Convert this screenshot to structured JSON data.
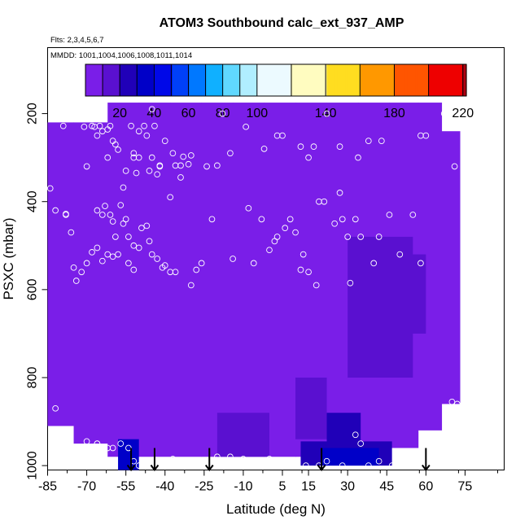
{
  "chart_data": {
    "type": "heatmap",
    "title": "ATOM3 Southbound calc_ext_937_AMP",
    "subtitle_flights": "Flts: 2,3,4,5,6,7",
    "subtitle_dates": "MMDD: 1001,1004,1006,1008,1011,1014",
    "xlabel": "Latitude (deg N)",
    "ylabel": "PSXC (mbar)",
    "xlim": [
      -85,
      90
    ],
    "ylim": [
      1010,
      50
    ],
    "x_ticks": [
      -85,
      -70,
      -55,
      -40,
      -25,
      -10,
      5,
      15,
      30,
      45,
      60,
      75
    ],
    "x_tick_labels": [
      "-85",
      "-70",
      "-55",
      "-40",
      "-25",
      "-10",
      "5",
      "15",
      "30",
      "45",
      "60",
      "75"
    ],
    "y_ticks": [
      200,
      400,
      600,
      800,
      1000
    ],
    "y_tick_labels": [
      "200",
      "400",
      "600",
      "800",
      "1000"
    ],
    "colorbar": {
      "range": [
        0,
        222
      ],
      "tick_values": [
        20,
        40,
        60,
        80,
        100,
        140,
        180,
        220
      ],
      "tick_labels": [
        "20",
        "40",
        "60",
        "80",
        "100",
        "140",
        "180",
        "220"
      ],
      "boundaries": [
        10,
        20,
        30,
        40,
        50,
        60,
        70,
        80,
        90,
        100,
        120,
        140,
        160,
        180,
        200,
        220
      ],
      "colors": [
        "#7a1ee8",
        "#5a10d0",
        "#2000b8",
        "#0000c8",
        "#0008e8",
        "#0040f8",
        "#0078ff",
        "#10b0ff",
        "#60d8ff",
        "#b0eeff",
        "#ecfaff",
        "#fffcc0",
        "#ffdd20",
        "#ff9800",
        "#ff5500",
        "#ee0000",
        "#b00010"
      ]
    },
    "profiles": [
      {
        "lat": -82,
        "pmin": 220,
        "pmax": 910
      },
      {
        "lat": -68,
        "pmin": 220,
        "pmax": 950
      },
      {
        "lat": -56,
        "pmin": 175,
        "pmax": 980
      },
      {
        "lat": -44,
        "pmin": 175,
        "pmax": 980
      },
      {
        "lat": -32,
        "pmin": 175,
        "pmax": 980
      },
      {
        "lat": -20,
        "pmin": 175,
        "pmax": 980
      },
      {
        "lat": -8,
        "pmin": 175,
        "pmax": 980
      },
      {
        "lat": 4,
        "pmin": 175,
        "pmax": 980
      },
      {
        "lat": 16,
        "pmin": 175,
        "pmax": 980
      },
      {
        "lat": 28,
        "pmin": 175,
        "pmax": 980
      },
      {
        "lat": 40,
        "pmin": 175,
        "pmax": 980
      },
      {
        "lat": 52,
        "pmin": 175,
        "pmax": 960
      },
      {
        "lat": 62,
        "pmin": 175,
        "pmax": 920
      },
      {
        "lat": 70,
        "pmin": 240,
        "pmax": 860
      }
    ],
    "field_cells": [
      {
        "lat0": -58,
        "lat1": -50,
        "p0": 940,
        "p1": 1010,
        "value": 30
      },
      {
        "lat0": -56,
        "lat1": -53,
        "p0": 960,
        "p1": 1000,
        "value": 38
      },
      {
        "lat0": -20,
        "lat1": 0,
        "p0": 880,
        "p1": 980,
        "value": 16
      },
      {
        "lat0": 10,
        "lat1": 22,
        "p0": 800,
        "p1": 940,
        "value": 17
      },
      {
        "lat0": 22,
        "lat1": 35,
        "p0": 880,
        "p1": 950,
        "value": 22
      },
      {
        "lat0": 12,
        "lat1": 47,
        "p0": 945,
        "p1": 1000,
        "value": 28
      },
      {
        "lat0": 20,
        "lat1": 42,
        "p0": 960,
        "p1": 1000,
        "value": 34
      },
      {
        "lat0": 30,
        "lat1": 55,
        "p0": 480,
        "p1": 800,
        "value": 17
      },
      {
        "lat0": 40,
        "lat1": 60,
        "p0": 520,
        "p1": 700,
        "value": 19
      }
    ],
    "observations": [
      [
        -84,
        370
      ],
      [
        -79,
        228
      ],
      [
        -75,
        550
      ],
      [
        -78,
        430
      ],
      [
        -71,
        230
      ],
      [
        -68,
        228
      ],
      [
        -67,
        230
      ],
      [
        -66,
        250
      ],
      [
        -65,
        228
      ],
      [
        -64,
        240
      ],
      [
        -62,
        236
      ],
      [
        -61,
        228
      ],
      [
        -60,
        262
      ],
      [
        -59,
        270
      ],
      [
        -58,
        282
      ],
      [
        -62,
        300
      ],
      [
        -70,
        320
      ],
      [
        -66,
        420
      ],
      [
        -64,
        430
      ],
      [
        -63,
        410
      ],
      [
        -61,
        430
      ],
      [
        -60,
        445
      ],
      [
        -59,
        480
      ],
      [
        -57,
        408
      ],
      [
        -56,
        368
      ],
      [
        -55,
        330
      ],
      [
        -52,
        300
      ],
      [
        -51,
        335
      ],
      [
        -52,
        290
      ],
      [
        -53,
        228
      ],
      [
        -50,
        240
      ],
      [
        -48,
        228
      ],
      [
        -47,
        250
      ],
      [
        -45,
        190
      ],
      [
        -44,
        228
      ],
      [
        -40,
        262
      ],
      [
        -37,
        290
      ],
      [
        -34,
        318
      ],
      [
        -31,
        315
      ],
      [
        -30,
        295
      ],
      [
        -50,
        300
      ],
      [
        -46,
        330
      ],
      [
        -45,
        300
      ],
      [
        -42,
        318
      ],
      [
        -43,
        338
      ],
      [
        -42,
        320
      ],
      [
        -38,
        390
      ],
      [
        -36,
        318
      ],
      [
        -34,
        345
      ],
      [
        -33,
        298
      ],
      [
        -55,
        440
      ],
      [
        -56,
        450
      ],
      [
        -54,
        480
      ],
      [
        -52,
        500
      ],
      [
        -50,
        505
      ],
      [
        -49,
        460
      ],
      [
        -47,
        455
      ],
      [
        -46,
        490
      ],
      [
        -45,
        520
      ],
      [
        -43,
        530
      ],
      [
        -41,
        550
      ],
      [
        -40,
        545
      ],
      [
        -38,
        560
      ],
      [
        -36,
        560
      ],
      [
        -54,
        540
      ],
      [
        -52,
        555
      ],
      [
        -58,
        520
      ],
      [
        -60,
        525
      ],
      [
        -62,
        520
      ],
      [
        -64,
        535
      ],
      [
        -66,
        505
      ],
      [
        -68,
        515
      ],
      [
        -70,
        540
      ],
      [
        -72,
        560
      ],
      [
        -74,
        580
      ],
      [
        -24,
        320
      ],
      [
        -20,
        318
      ],
      [
        -18,
        200
      ],
      [
        -15,
        290
      ],
      [
        -9,
        230
      ],
      [
        -2,
        280
      ],
      [
        3,
        250
      ],
      [
        5,
        250
      ],
      [
        12,
        275
      ],
      [
        15,
        300
      ],
      [
        17,
        275
      ],
      [
        22,
        200
      ],
      [
        27,
        275
      ],
      [
        34,
        300
      ],
      [
        38,
        262
      ],
      [
        43,
        262
      ],
      [
        58,
        250
      ],
      [
        60,
        250
      ],
      [
        67,
        200
      ],
      [
        69,
        200
      ],
      [
        71,
        320
      ],
      [
        -78,
        428
      ],
      [
        -82,
        420
      ],
      [
        -76,
        470
      ],
      [
        -22,
        440
      ],
      [
        -8,
        415
      ],
      [
        -3,
        440
      ],
      [
        0,
        510
      ],
      [
        2,
        490
      ],
      [
        3,
        480
      ],
      [
        6,
        460
      ],
      [
        8,
        440
      ],
      [
        10,
        470
      ],
      [
        13,
        520
      ],
      [
        15,
        560
      ],
      [
        18,
        590
      ],
      [
        12,
        555
      ],
      [
        -6,
        540
      ],
      [
        -14,
        530
      ],
      [
        -28,
        555
      ],
      [
        -30,
        590
      ],
      [
        -26,
        540
      ],
      [
        33,
        440
      ],
      [
        35,
        480
      ],
      [
        40,
        540
      ],
      [
        42,
        480
      ],
      [
        46,
        430
      ],
      [
        50,
        520
      ],
      [
        55,
        430
      ],
      [
        58,
        540
      ],
      [
        28,
        440
      ],
      [
        30,
        480
      ],
      [
        25,
        450
      ],
      [
        31,
        585
      ],
      [
        19,
        400
      ],
      [
        21,
        400
      ],
      [
        27,
        380
      ],
      [
        -82,
        870
      ],
      [
        -70,
        945
      ],
      [
        -68,
        960
      ],
      [
        -66,
        950
      ],
      [
        -60,
        960
      ],
      [
        -62,
        960
      ],
      [
        -57,
        950
      ],
      [
        -54,
        960
      ],
      [
        -52,
        990
      ],
      [
        -50,
        1000
      ],
      [
        -46,
        1000
      ],
      [
        -42,
        995
      ],
      [
        -37,
        985
      ],
      [
        -32,
        990
      ],
      [
        -25,
        990
      ],
      [
        -20,
        980
      ],
      [
        -15,
        980
      ],
      [
        -10,
        985
      ],
      [
        -5,
        990
      ],
      [
        0,
        985
      ],
      [
        4,
        990
      ],
      [
        9,
        995
      ],
      [
        14,
        1000
      ],
      [
        19,
        1000
      ],
      [
        22,
        990
      ],
      [
        28,
        1000
      ],
      [
        33,
        930
      ],
      [
        35,
        950
      ],
      [
        38,
        1000
      ],
      [
        42,
        990
      ],
      [
        47,
        1000
      ],
      [
        64,
        955
      ],
      [
        70,
        855
      ],
      [
        72,
        860
      ],
      [
        -66,
        950
      ]
    ],
    "arrows_lat": [
      -53,
      -44,
      -23,
      20,
      60
    ],
    "arrow_pressure_range": [
      960,
      1010
    ]
  }
}
